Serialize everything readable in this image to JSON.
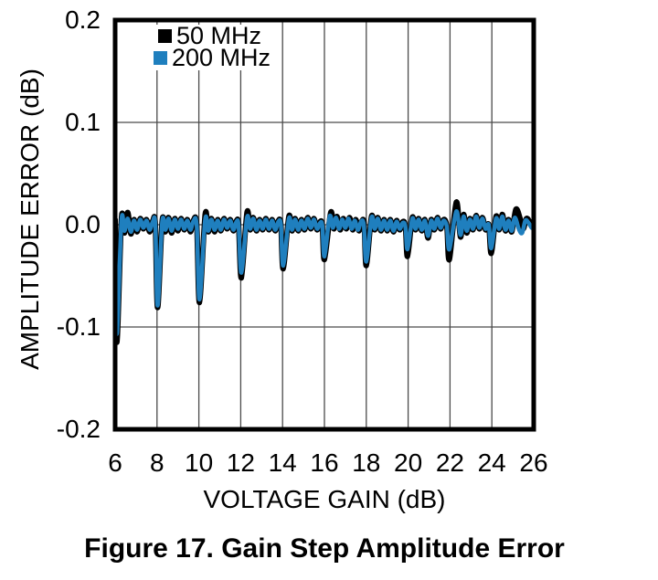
{
  "figure": {
    "caption": "Figure 17. Gain Step Amplitude Error"
  },
  "chart_data": {
    "type": "line",
    "title": "",
    "xlabel": "VOLTAGE GAIN (dB)",
    "ylabel": "AMPLITUDE ERROR (dB)",
    "xlim": [
      6,
      26
    ],
    "ylim": [
      -0.2,
      0.2
    ],
    "x_ticks": [
      6,
      8,
      10,
      12,
      14,
      16,
      18,
      20,
      22,
      24,
      26
    ],
    "y_ticks": [
      "0.2",
      "0.1",
      "0.0",
      "-0.1",
      "-0.2"
    ],
    "y_tick_values": [
      0.2,
      0.1,
      0.0,
      -0.1,
      -0.2
    ],
    "grid": true,
    "legend_position": "top-left",
    "grid_color": "#4a4a4a",
    "border_color": "#000000",
    "series": [
      {
        "name": "50 MHz",
        "color": "#000000",
        "points": [
          [
            6.0,
            0.005
          ],
          [
            6.08,
            -0.115
          ],
          [
            6.3,
            0.006
          ],
          [
            6.45,
            -0.008
          ],
          [
            6.6,
            0.012
          ],
          [
            6.75,
            -0.009
          ],
          [
            6.9,
            0.005
          ],
          [
            7.05,
            -0.007
          ],
          [
            7.2,
            0.006
          ],
          [
            7.35,
            -0.004
          ],
          [
            7.5,
            0.005
          ],
          [
            7.65,
            -0.007
          ],
          [
            7.8,
            0.004
          ],
          [
            7.92,
            0.0
          ],
          [
            8.03,
            -0.081
          ],
          [
            8.25,
            0.004
          ],
          [
            8.4,
            -0.007
          ],
          [
            8.55,
            0.007
          ],
          [
            8.7,
            -0.008
          ],
          [
            8.85,
            0.006
          ],
          [
            9.0,
            -0.006
          ],
          [
            9.15,
            0.006
          ],
          [
            9.3,
            -0.005
          ],
          [
            9.45,
            0.005
          ],
          [
            9.6,
            -0.007
          ],
          [
            9.75,
            0.005
          ],
          [
            9.9,
            -0.001
          ],
          [
            10.03,
            -0.076
          ],
          [
            10.3,
            0.01
          ],
          [
            10.45,
            -0.007
          ],
          [
            10.6,
            0.006
          ],
          [
            10.75,
            -0.007
          ],
          [
            10.9,
            0.005
          ],
          [
            11.05,
            -0.006
          ],
          [
            11.2,
            0.006
          ],
          [
            11.35,
            -0.004
          ],
          [
            11.5,
            0.005
          ],
          [
            11.65,
            -0.006
          ],
          [
            11.8,
            0.004
          ],
          [
            11.9,
            -0.001
          ],
          [
            12.03,
            -0.052
          ],
          [
            12.3,
            0.012
          ],
          [
            12.45,
            -0.005
          ],
          [
            12.6,
            0.007
          ],
          [
            12.75,
            -0.006
          ],
          [
            12.9,
            0.005
          ],
          [
            13.05,
            -0.005
          ],
          [
            13.2,
            0.006
          ],
          [
            13.35,
            -0.005
          ],
          [
            13.5,
            0.005
          ],
          [
            13.65,
            -0.006
          ],
          [
            13.8,
            0.004
          ],
          [
            13.92,
            0.0
          ],
          [
            14.03,
            -0.043
          ],
          [
            14.3,
            0.008
          ],
          [
            14.45,
            -0.006
          ],
          [
            14.6,
            0.006
          ],
          [
            14.75,
            -0.006
          ],
          [
            14.9,
            0.005
          ],
          [
            15.05,
            -0.005
          ],
          [
            15.2,
            0.007
          ],
          [
            15.35,
            -0.004
          ],
          [
            15.5,
            0.006
          ],
          [
            15.65,
            -0.005
          ],
          [
            15.8,
            0.003
          ],
          [
            15.9,
            -0.001
          ],
          [
            16.0,
            -0.034
          ],
          [
            16.3,
            0.012
          ],
          [
            16.45,
            -0.004
          ],
          [
            16.6,
            0.008
          ],
          [
            16.75,
            -0.005
          ],
          [
            16.9,
            0.006
          ],
          [
            17.05,
            -0.004
          ],
          [
            17.2,
            0.007
          ],
          [
            17.35,
            -0.005
          ],
          [
            17.5,
            0.005
          ],
          [
            17.65,
            -0.006
          ],
          [
            17.8,
            0.004
          ],
          [
            17.9,
            0.0
          ],
          [
            18.0,
            -0.04
          ],
          [
            18.25,
            0.008
          ],
          [
            18.4,
            -0.005
          ],
          [
            18.55,
            0.007
          ],
          [
            18.7,
            -0.006
          ],
          [
            18.85,
            0.005
          ],
          [
            19.0,
            -0.006
          ],
          [
            19.15,
            0.005
          ],
          [
            19.3,
            -0.007
          ],
          [
            19.45,
            0.004
          ],
          [
            19.6,
            -0.005
          ],
          [
            19.75,
            0.003
          ],
          [
            19.87,
            -0.002
          ],
          [
            19.97,
            -0.031
          ],
          [
            20.2,
            0.007
          ],
          [
            20.35,
            -0.005
          ],
          [
            20.5,
            0.006
          ],
          [
            20.65,
            -0.006
          ],
          [
            20.8,
            0.005
          ],
          [
            20.95,
            -0.013
          ],
          [
            21.1,
            0.005
          ],
          [
            21.25,
            -0.005
          ],
          [
            21.4,
            0.007
          ],
          [
            21.55,
            -0.004
          ],
          [
            21.7,
            0.005
          ],
          [
            21.85,
            -0.002
          ],
          [
            21.97,
            -0.034
          ],
          [
            22.3,
            0.022
          ],
          [
            22.5,
            -0.012
          ],
          [
            22.65,
            0.01
          ],
          [
            22.8,
            -0.008
          ],
          [
            22.95,
            0.006
          ],
          [
            23.1,
            -0.005
          ],
          [
            23.25,
            0.009
          ],
          [
            23.4,
            -0.004
          ],
          [
            23.55,
            0.007
          ],
          [
            23.7,
            -0.005
          ],
          [
            23.85,
            0.0
          ],
          [
            23.97,
            -0.028
          ],
          [
            24.2,
            0.008
          ],
          [
            24.35,
            -0.005
          ],
          [
            24.5,
            0.01
          ],
          [
            24.65,
            -0.006
          ],
          [
            24.8,
            0.005
          ],
          [
            24.95,
            -0.007
          ],
          [
            25.15,
            0.015
          ],
          [
            25.35,
            0.006
          ],
          [
            25.5,
            -0.004
          ],
          [
            25.65,
            0.006
          ],
          [
            25.8,
            0.003
          ],
          [
            25.9,
            -0.001
          ],
          [
            26.0,
            0.0
          ]
        ]
      },
      {
        "name": "200 MHz",
        "color": "#1f7fbe",
        "points": [
          [
            6.0,
            0.004
          ],
          [
            6.08,
            -0.107
          ],
          [
            6.3,
            0.004
          ],
          [
            6.45,
            -0.006
          ],
          [
            6.6,
            0.006
          ],
          [
            6.75,
            -0.007
          ],
          [
            6.9,
            0.004
          ],
          [
            7.05,
            -0.005
          ],
          [
            7.2,
            0.005
          ],
          [
            7.35,
            -0.003
          ],
          [
            7.5,
            0.004
          ],
          [
            7.65,
            -0.005
          ],
          [
            7.8,
            0.003
          ],
          [
            7.92,
            0.0
          ],
          [
            8.03,
            -0.079
          ],
          [
            8.25,
            0.003
          ],
          [
            8.4,
            -0.005
          ],
          [
            8.55,
            0.006
          ],
          [
            8.7,
            -0.006
          ],
          [
            8.85,
            0.005
          ],
          [
            9.0,
            -0.004
          ],
          [
            9.15,
            0.005
          ],
          [
            9.3,
            -0.004
          ],
          [
            9.45,
            0.004
          ],
          [
            9.6,
            -0.005
          ],
          [
            9.75,
            0.004
          ],
          [
            9.9,
            -0.001
          ],
          [
            10.03,
            -0.073
          ],
          [
            10.3,
            0.005
          ],
          [
            10.45,
            -0.006
          ],
          [
            10.6,
            0.005
          ],
          [
            10.75,
            -0.005
          ],
          [
            10.9,
            0.004
          ],
          [
            11.05,
            -0.005
          ],
          [
            11.2,
            0.005
          ],
          [
            11.35,
            -0.003
          ],
          [
            11.5,
            0.004
          ],
          [
            11.65,
            -0.005
          ],
          [
            11.8,
            0.003
          ],
          [
            11.9,
            -0.001
          ],
          [
            12.03,
            -0.047
          ],
          [
            12.3,
            0.007
          ],
          [
            12.45,
            -0.004
          ],
          [
            12.6,
            0.006
          ],
          [
            12.75,
            -0.005
          ],
          [
            12.9,
            0.004
          ],
          [
            13.05,
            -0.004
          ],
          [
            13.2,
            0.005
          ],
          [
            13.35,
            -0.004
          ],
          [
            13.5,
            0.004
          ],
          [
            13.65,
            -0.005
          ],
          [
            13.8,
            0.003
          ],
          [
            13.92,
            0.0
          ],
          [
            14.03,
            -0.04
          ],
          [
            14.3,
            0.006
          ],
          [
            14.45,
            -0.005
          ],
          [
            14.6,
            0.005
          ],
          [
            14.75,
            -0.005
          ],
          [
            14.9,
            0.004
          ],
          [
            15.05,
            -0.004
          ],
          [
            15.2,
            0.006
          ],
          [
            15.35,
            -0.003
          ],
          [
            15.5,
            0.005
          ],
          [
            15.65,
            -0.004
          ],
          [
            15.8,
            0.002
          ],
          [
            15.9,
            -0.001
          ],
          [
            16.0,
            -0.031
          ],
          [
            16.25,
            0.008
          ],
          [
            16.4,
            -0.003
          ],
          [
            16.55,
            0.007
          ],
          [
            16.7,
            -0.004
          ],
          [
            16.85,
            0.005
          ],
          [
            17.0,
            -0.003
          ],
          [
            17.15,
            0.006
          ],
          [
            17.3,
            -0.004
          ],
          [
            17.45,
            0.004
          ],
          [
            17.6,
            -0.005
          ],
          [
            17.75,
            0.003
          ],
          [
            17.88,
            0.0
          ],
          [
            18.0,
            -0.036
          ],
          [
            18.25,
            0.007
          ],
          [
            18.4,
            -0.004
          ],
          [
            18.55,
            0.006
          ],
          [
            18.7,
            -0.005
          ],
          [
            18.85,
            0.004
          ],
          [
            19.0,
            -0.005
          ],
          [
            19.15,
            0.004
          ],
          [
            19.3,
            -0.006
          ],
          [
            19.45,
            0.003
          ],
          [
            19.6,
            -0.004
          ],
          [
            19.75,
            0.002
          ],
          [
            19.87,
            -0.002
          ],
          [
            19.97,
            -0.024
          ],
          [
            20.2,
            0.006
          ],
          [
            20.35,
            -0.004
          ],
          [
            20.5,
            0.005
          ],
          [
            20.65,
            -0.005
          ],
          [
            20.8,
            0.004
          ],
          [
            20.95,
            -0.011
          ],
          [
            21.1,
            0.004
          ],
          [
            21.25,
            -0.004
          ],
          [
            21.4,
            0.006
          ],
          [
            21.55,
            -0.003
          ],
          [
            21.7,
            0.004
          ],
          [
            21.85,
            -0.002
          ],
          [
            21.97,
            -0.024
          ],
          [
            22.3,
            0.013
          ],
          [
            22.5,
            -0.01
          ],
          [
            22.65,
            0.008
          ],
          [
            22.8,
            -0.006
          ],
          [
            22.95,
            0.005
          ],
          [
            23.1,
            -0.004
          ],
          [
            23.25,
            0.008
          ],
          [
            23.4,
            -0.003
          ],
          [
            23.55,
            0.006
          ],
          [
            23.7,
            -0.004
          ],
          [
            23.85,
            0.0
          ],
          [
            23.97,
            -0.023
          ],
          [
            24.2,
            0.006
          ],
          [
            24.35,
            -0.004
          ],
          [
            24.5,
            0.008
          ],
          [
            24.65,
            -0.005
          ],
          [
            24.8,
            0.004
          ],
          [
            24.95,
            -0.006
          ],
          [
            25.1,
            0.007
          ],
          [
            25.3,
            -0.005
          ],
          [
            25.45,
            -0.008
          ],
          [
            25.6,
            0.004
          ],
          [
            25.75,
            0.002
          ],
          [
            25.9,
            -0.003
          ],
          [
            26.0,
            -0.002
          ]
        ]
      }
    ]
  }
}
